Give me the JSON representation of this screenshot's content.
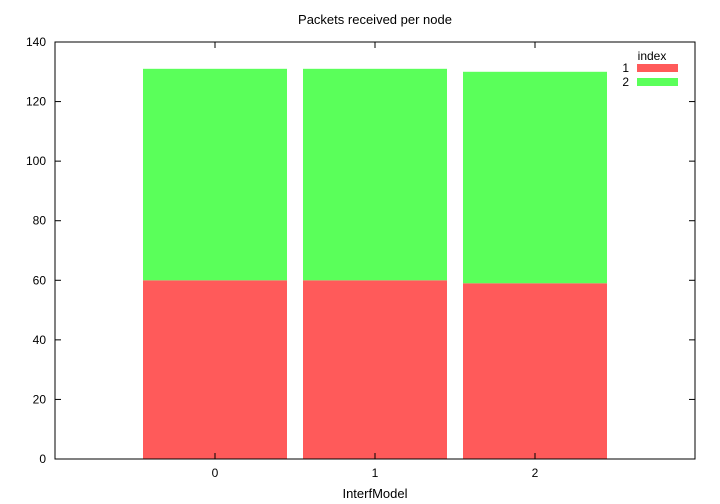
{
  "chart_data": {
    "type": "bar",
    "stacked": true,
    "title": "Packets received per node",
    "xlabel": "InterfModel",
    "ylabel": "",
    "categories": [
      "0",
      "1",
      "2"
    ],
    "ylim": [
      0,
      140
    ],
    "yticks": [
      "0",
      "20",
      "40",
      "60",
      "80",
      "100",
      "120",
      "140"
    ],
    "grid": false,
    "legend": {
      "title": "index",
      "placement": "top-right"
    },
    "series": [
      {
        "name": "1",
        "color": "#ff5a5a",
        "values": [
          60,
          60,
          59
        ]
      },
      {
        "name": "2",
        "color": "#5aff5a",
        "values": [
          71,
          71,
          71
        ]
      }
    ]
  }
}
